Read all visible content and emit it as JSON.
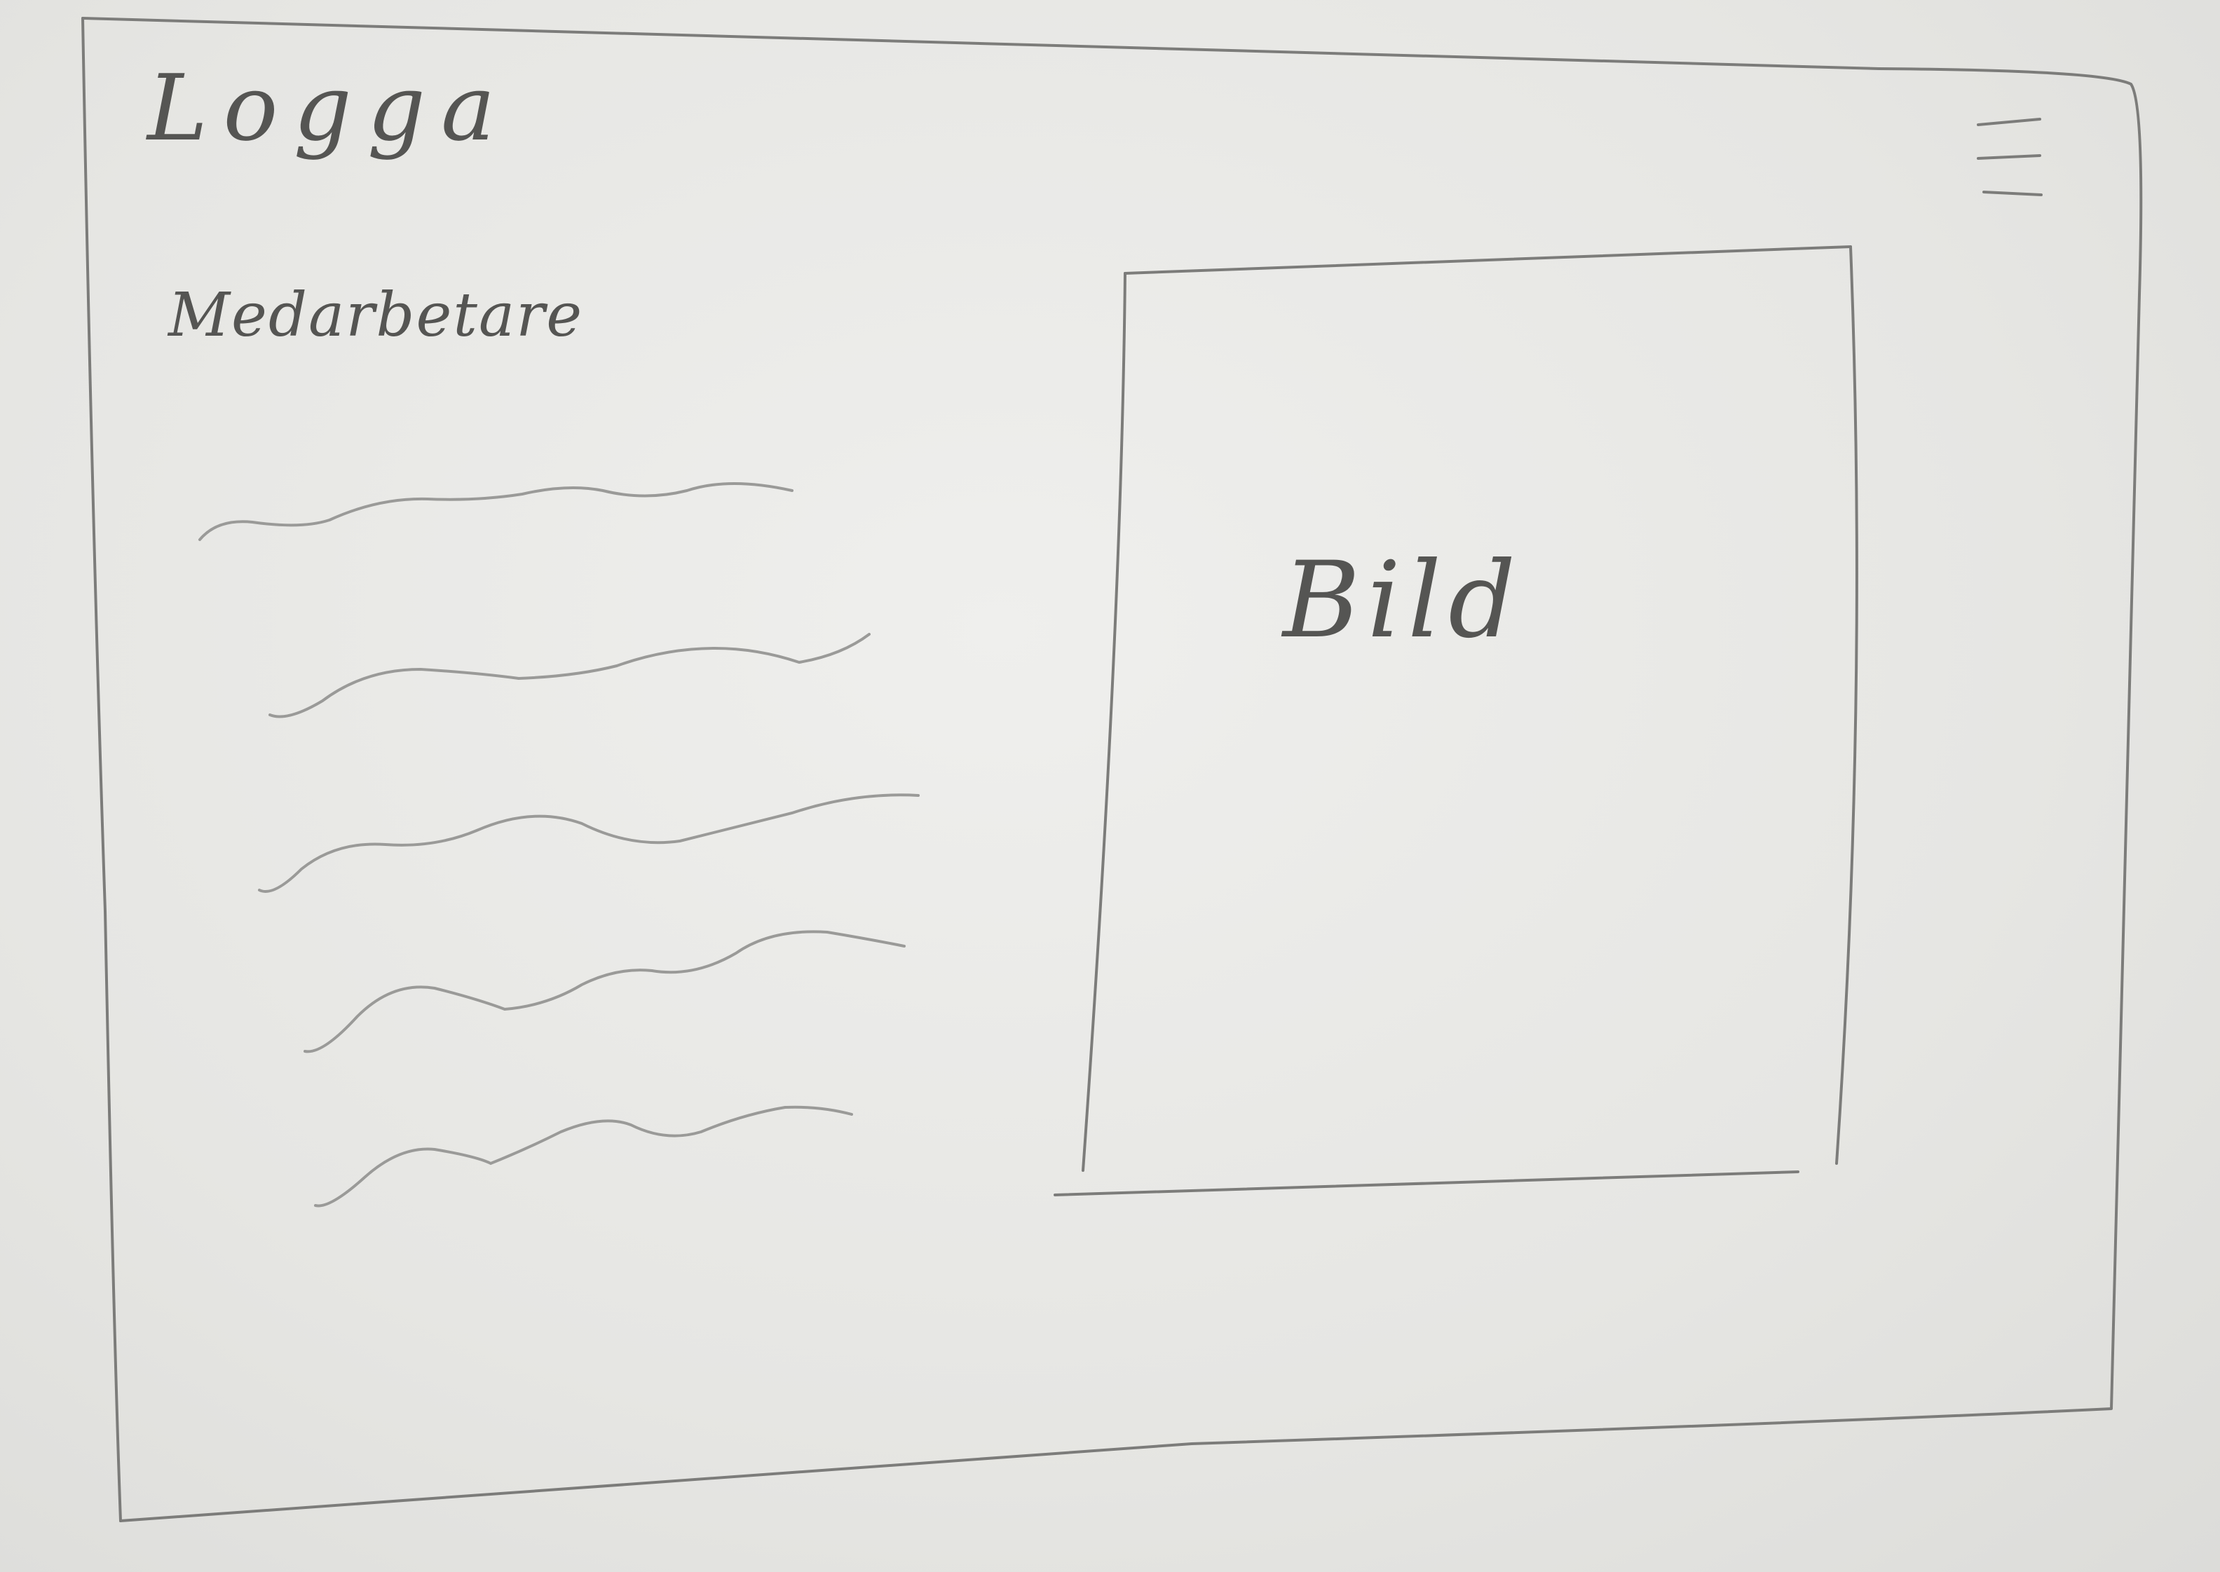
{
  "header": {
    "logo_text": "Logga",
    "menu_icon": "hamburger-menu-icon"
  },
  "nav": {
    "item_label": "Medarbetare"
  },
  "main": {
    "text_placeholder_lines": 5,
    "image_label": "Bild"
  },
  "colors": {
    "paper": "#e9e8e6",
    "pencil": "#7c7c7a",
    "text": "#555553"
  }
}
